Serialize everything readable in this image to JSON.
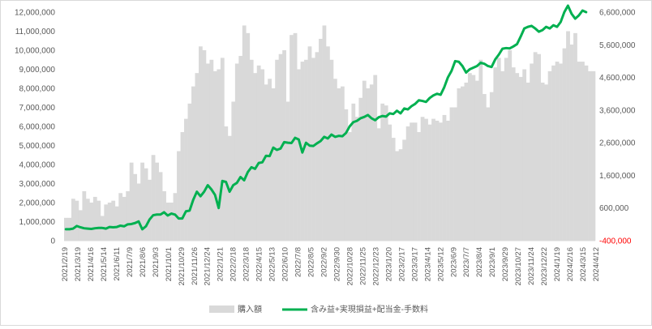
{
  "chart_data": {
    "type": "bar",
    "y_left": {
      "ticks": [
        0,
        1000000,
        2000000,
        3000000,
        4000000,
        5000000,
        6000000,
        7000000,
        8000000,
        9000000,
        10000000,
        11000000,
        12000000
      ],
      "tick_labels": [
        "0",
        "1,000,000",
        "2,000,000",
        "3,000,000",
        "4,000,000",
        "5,000,000",
        "6,000,000",
        "7,000,000",
        "8,000,000",
        "9,000,000",
        "10,000,000",
        "11,000,000",
        "12,000,000"
      ],
      "ylim": [
        0,
        12000000
      ]
    },
    "y_right": {
      "ticks": [
        -400000,
        600000,
        1600000,
        2600000,
        3600000,
        4600000,
        5600000,
        6600000
      ],
      "tick_labels": [
        "-400,000",
        "600,000",
        "1,600,000",
        "2,600,000",
        "3,600,000",
        "4,600,000",
        "5,600,000",
        "6,600,000"
      ],
      "ylim": [
        -400000,
        6600000
      ],
      "negative_label_color": "#ff0000"
    },
    "x_tick_labels": [
      "2021/2/19",
      "2021/3/19",
      "2021/4/16",
      "2021/5/14",
      "2021/6/11",
      "2021/7/9",
      "2021/8/6",
      "2021/9/3",
      "2021/10/1",
      "2021/10/29",
      "2021/11/26",
      "2021/12/24",
      "2022/1/21",
      "2022/2/18",
      "2022/3/18",
      "2022/4/15",
      "2022/5/13",
      "2022/6/10",
      "2022/7/8",
      "2022/8/5",
      "2022/9/2",
      "2022/9/30",
      "2022/10/28",
      "2022/11/25",
      "2022/12/23",
      "2023/1/20",
      "2023/2/17",
      "2023/3/17",
      "2023/4/14",
      "2023/5/12",
      "2023/6/9",
      "2023/7/7",
      "2023/8/4",
      "2023/9/1",
      "2023/9/29",
      "2023/10/27",
      "2023/11/24",
      "2023/12/22",
      "2024/1/19",
      "2024/2/16",
      "2024/3/15",
      "2024/4/12"
    ],
    "series": [
      {
        "name": "購入額",
        "type": "bar",
        "axis": "left",
        "color": "#d9d9d9",
        "values": [
          1200000,
          1200000,
          2200000,
          2100000,
          1600000,
          2600000,
          2200000,
          2000000,
          2300000,
          2100000,
          1300000,
          1900000,
          2000000,
          2100000,
          1800000,
          2500000,
          2300000,
          2600000,
          4100000,
          3500000,
          3000000,
          4100000,
          3800000,
          3200000,
          4500000,
          4100000,
          3600000,
          2600000,
          2000000,
          2000000,
          2500000,
          4700000,
          5700000,
          6400000,
          7200000,
          8100000,
          8800000,
          10200000,
          10000000,
          9300000,
          9500000,
          8900000,
          9000000,
          9600000,
          6000000,
          5500000,
          7300000,
          9300000,
          9700000,
          11300000,
          10900000,
          9500000,
          8800000,
          9200000,
          9000000,
          8200000,
          8500000,
          8000000,
          9500000,
          9800000,
          10000000,
          7300000,
          10800000,
          10900000,
          9000000,
          9400000,
          9500000,
          10200000,
          9600000,
          9900000,
          10600000,
          11300000,
          10200000,
          9500000,
          8500000,
          8000000,
          8100000,
          6900000,
          5700000,
          7200000,
          6500000,
          7500000,
          8400000,
          8000000,
          8200000,
          8700000,
          5900000,
          7200000,
          7100000,
          6100000,
          5400000,
          4700000,
          4800000,
          5300000,
          6000000,
          6200000,
          6200000,
          5700000,
          6500000,
          6400000,
          6100000,
          6400000,
          6300000,
          6200000,
          6600000,
          6300000,
          7000000,
          7000000,
          8000000,
          8100000,
          8300000,
          8800000,
          8700000,
          8400000,
          9500000,
          7700000,
          7000000,
          7800000,
          9100000,
          9600000,
          8900000,
          9600000,
          10000000,
          9100000,
          8800000,
          8600000,
          9000000,
          8300000,
          9300000,
          9900000,
          9800000,
          8300000,
          8200000,
          8900000,
          9200000,
          9400000,
          9300000,
          10100000,
          11000000,
          10300000,
          10900000,
          9400000,
          9400000,
          9200000,
          8900000,
          8900000
        ]
      },
      {
        "name": "含み益+実現損益+配当金-手数料",
        "type": "line",
        "axis": "right",
        "color": "#00b050",
        "values": [
          -50000,
          -50000,
          -30000,
          50000,
          10000,
          -20000,
          -30000,
          -40000,
          -20000,
          -10000,
          -10000,
          -30000,
          20000,
          10000,
          20000,
          60000,
          40000,
          100000,
          110000,
          140000,
          190000,
          -50000,
          40000,
          250000,
          380000,
          400000,
          400000,
          470000,
          370000,
          430000,
          400000,
          280000,
          280000,
          500000,
          520000,
          850000,
          1100000,
          960000,
          1100000,
          1300000,
          1170000,
          1000000,
          600000,
          1430000,
          1400000,
          1100000,
          1300000,
          1370000,
          1550000,
          1450000,
          1700000,
          1850000,
          1800000,
          1980000,
          2000000,
          2200000,
          2190000,
          2450000,
          2380000,
          2420000,
          2620000,
          2600000,
          2590000,
          2750000,
          2700000,
          2300000,
          2600000,
          2510000,
          2500000,
          2580000,
          2650000,
          2780000,
          2730000,
          2850000,
          2780000,
          2810000,
          2800000,
          2900000,
          3100000,
          3230000,
          3270000,
          3350000,
          3390000,
          3450000,
          3350000,
          3290000,
          3380000,
          3420000,
          3400000,
          3500000,
          3480000,
          3580000,
          3500000,
          3650000,
          3620000,
          3720000,
          3790000,
          3900000,
          3880000,
          3850000,
          3970000,
          4050000,
          4100000,
          4070000,
          4300000,
          4600000,
          4800000,
          5100000,
          5080000,
          4950000,
          4750000,
          4850000,
          4900000,
          4950000,
          5050000,
          5020000,
          4950000,
          4920000,
          5150000,
          5300000,
          5480000,
          5500000,
          5490000,
          5550000,
          5620000,
          5850000,
          6100000,
          6150000,
          6180000,
          6100000,
          6000000,
          6050000,
          6150000,
          6100000,
          6200000,
          6150000,
          6300000,
          6600000,
          6800000,
          6550000,
          6400000,
          6500000,
          6650000,
          6600000
        ]
      }
    ],
    "legend": {
      "placement": "bottom",
      "entries": [
        "購入額",
        "含み益+実現損益+配当金-手数料"
      ]
    }
  }
}
